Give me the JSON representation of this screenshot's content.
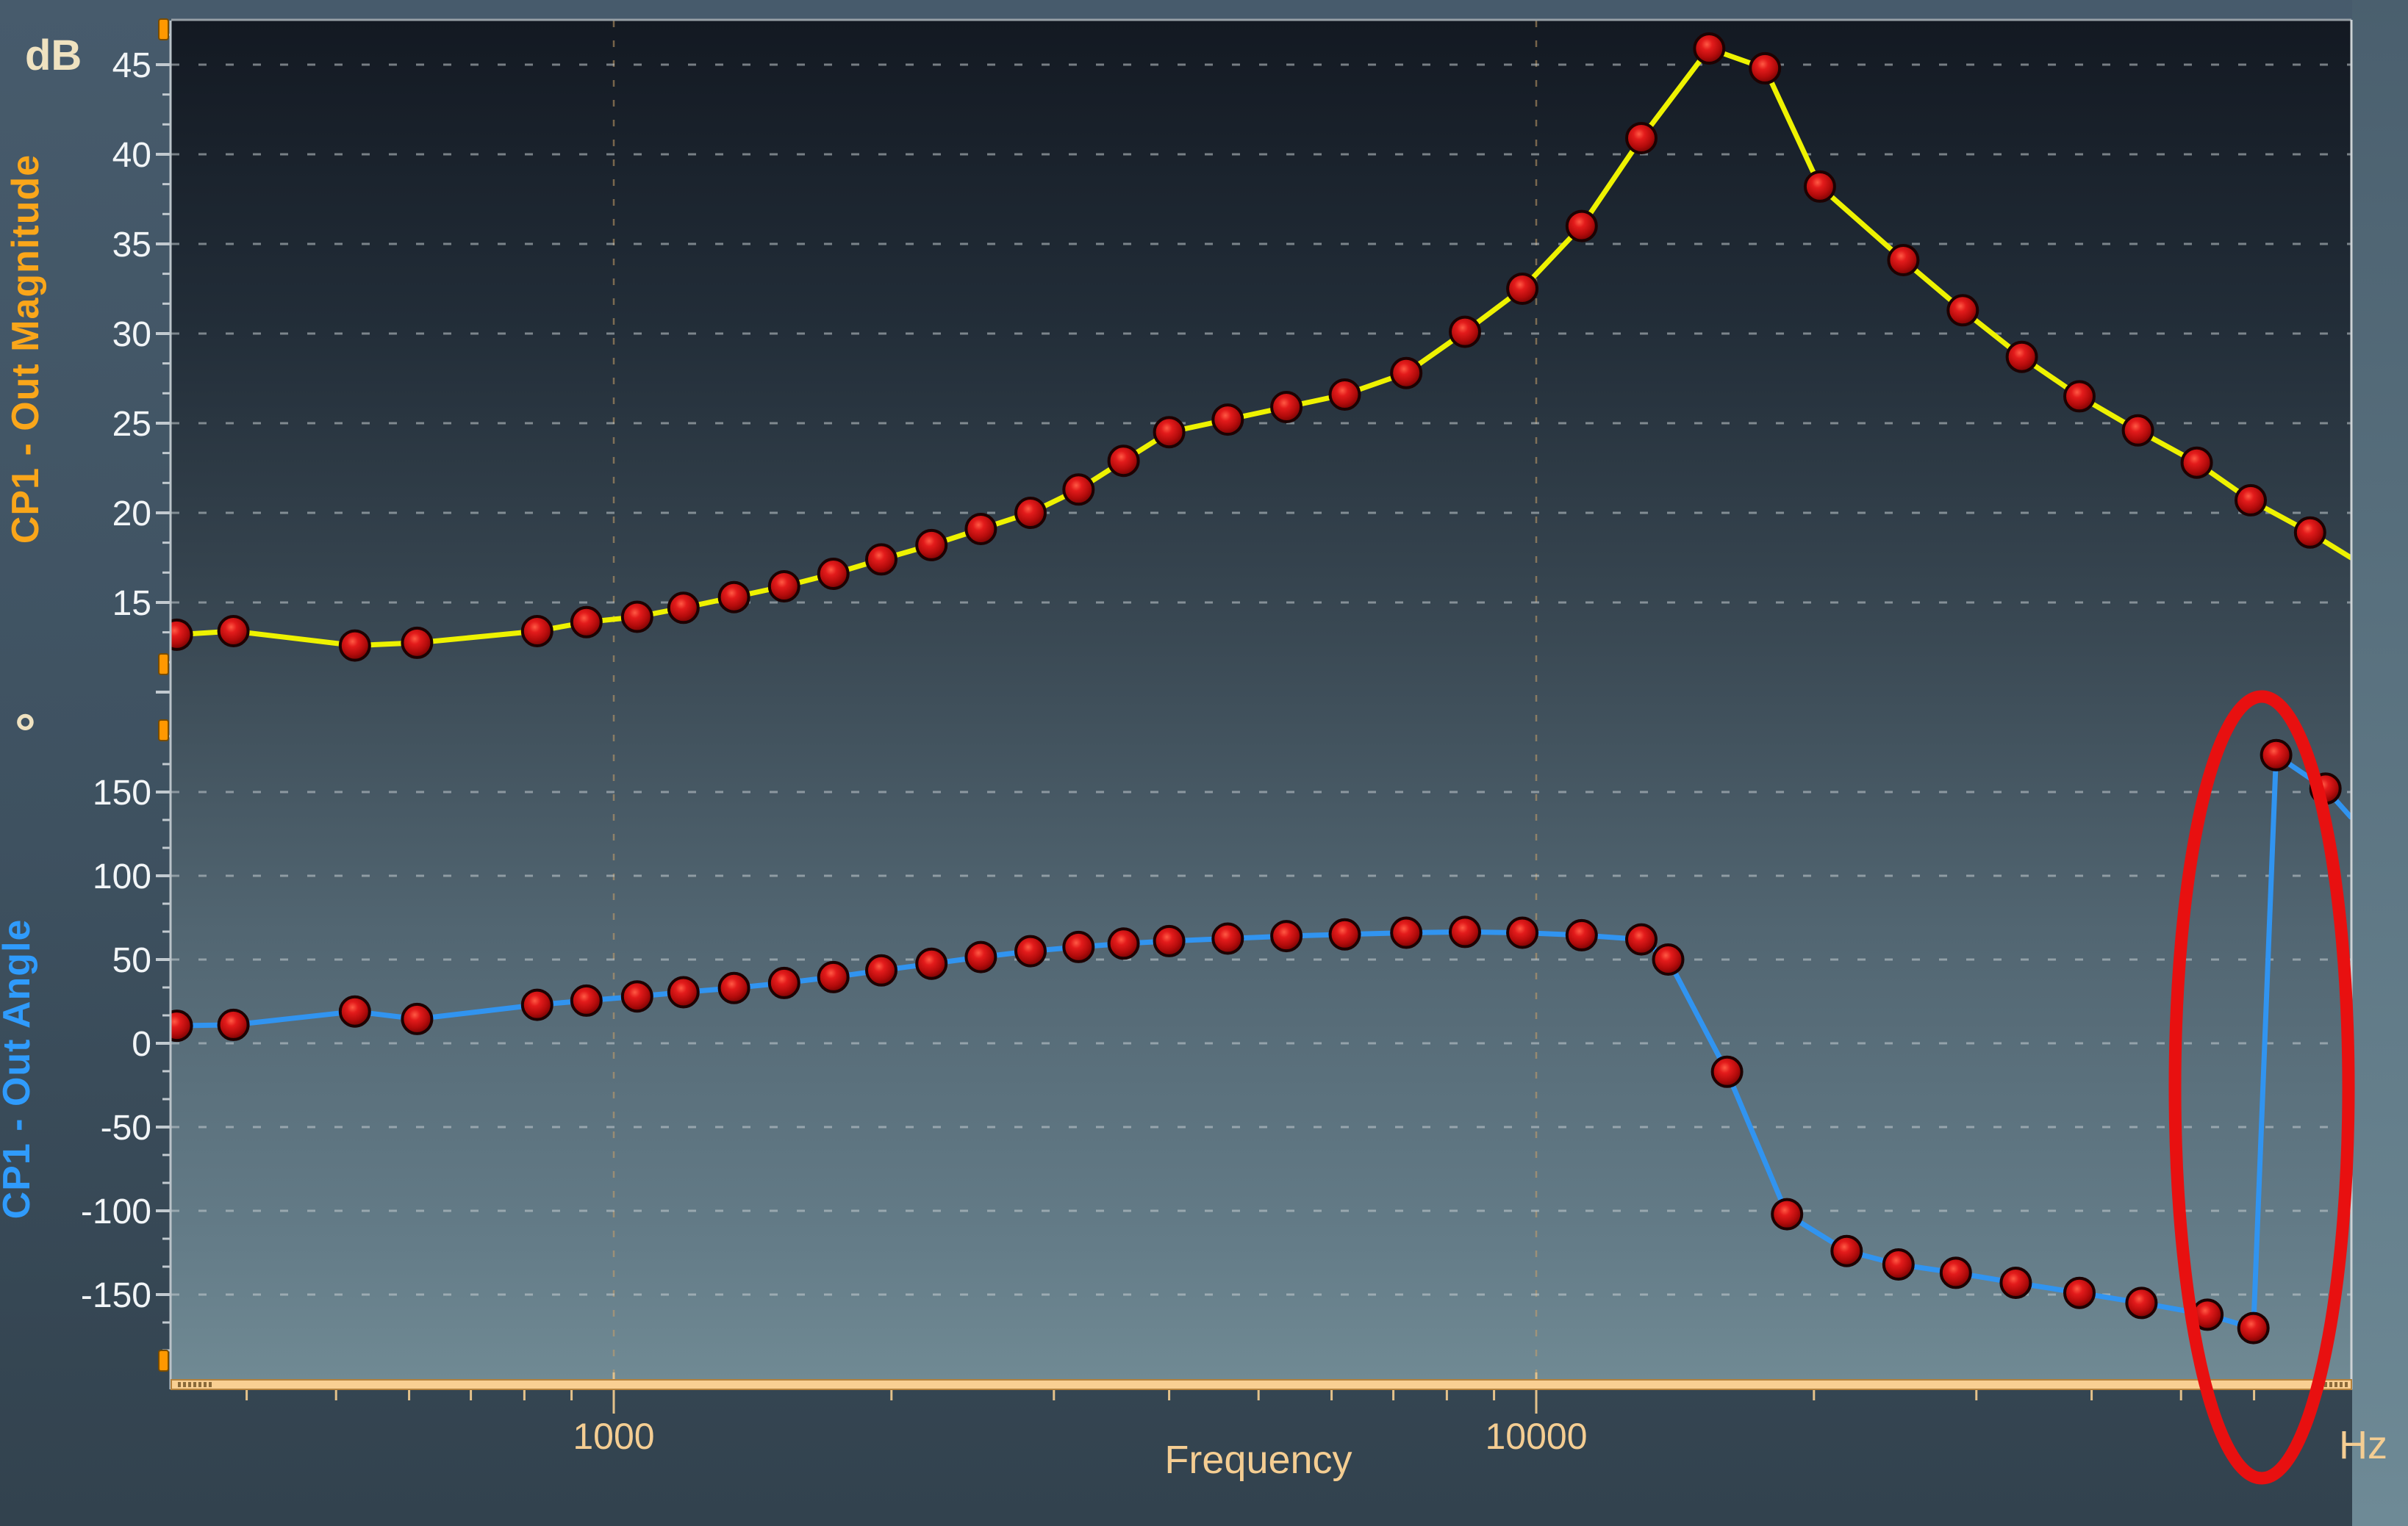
{
  "window": {
    "description": "Frequency response (Bode) plot from a measurement instrument UI",
    "units": {
      "magnitude": "dB",
      "angle": "°",
      "frequency": "Hz"
    }
  },
  "labels": {
    "db_unit": "dB",
    "degree_unit": "°",
    "magnitude_axis_title": "CP1 - Out Magnitude",
    "angle_axis_title": "CP1 - Out Angle",
    "frequency_axis_title": "Frequency",
    "hz_unit": "Hz",
    "x_major_tick_labels": [
      "1000",
      "10000"
    ]
  },
  "colors": {
    "magnitude_trace": "#eef200",
    "angle_trace": "#3194f0",
    "marker_fill": "#cc1111",
    "marker_edge": "#1c0202",
    "annotation_red": "#e81010",
    "tick_text": "#f2f5f7",
    "frequency_text": "#f4cd92",
    "magnitude_title_text": "#faa61a",
    "angle_title_text": "#2f9bfc",
    "unit_text": "#efe2c0",
    "scroll_bar": "#f9cf92",
    "axis_handle_orange": "#ff9800",
    "gridline": "#c7ced2",
    "decade_gridline": "#c8a06a"
  },
  "chart_data": {
    "type": "line",
    "x_axis": {
      "title": "Frequency",
      "unit": "Hz",
      "scale": "log",
      "range_hz": [
        333,
        76400
      ],
      "major_ticks_hz": [
        1000,
        10000
      ],
      "minor_ticks_hz": [
        400,
        500,
        600,
        700,
        800,
        900,
        2000,
        3000,
        4000,
        5000,
        6000,
        7000,
        8000,
        9000,
        20000,
        30000,
        40000,
        50000,
        60000,
        70000
      ],
      "grid": true
    },
    "magnitude_axis": {
      "title": "CP1 - Out Magnitude",
      "unit": "dB",
      "tick_values": [
        45,
        40,
        35,
        30,
        25,
        20,
        15
      ],
      "grid": true
    },
    "angle_axis": {
      "title": "CP1 - Out Angle",
      "unit": "°",
      "tick_values": [
        150,
        100,
        50,
        0,
        -50,
        -100,
        -150
      ],
      "grid": true
    },
    "series": [
      {
        "name": "CP1 - Out Magnitude",
        "unit": "dB",
        "marker": "dark-red-sphere",
        "frequencies_hz": [
          336,
          387,
          524,
          612,
          826,
          934,
          1060,
          1190,
          1350,
          1530,
          1730,
          1950,
          2210,
          2500,
          2830,
          3190,
          3570,
          4000,
          4630,
          5360,
          6200,
          7230,
          8370,
          9660,
          11200,
          13000,
          15400,
          17700,
          20300,
          25000,
          29000,
          33600,
          38800,
          44900,
          52000,
          59500,
          69000
        ],
        "values_db": [
          13.2,
          13.4,
          12.6,
          12.75,
          13.4,
          13.9,
          14.2,
          14.7,
          15.3,
          15.9,
          16.6,
          17.4,
          18.2,
          19.1,
          20.0,
          21.3,
          22.9,
          24.5,
          25.2,
          25.9,
          26.6,
          27.8,
          30.1,
          32.5,
          36.0,
          40.9,
          45.9,
          44.8,
          38.2,
          34.1,
          31.3,
          28.7,
          26.5,
          24.6,
          22.8,
          20.7,
          18.9
        ],
        "edge_point": {
          "hz": 76400,
          "value": 17.5
        },
        "peak": {
          "hz": 15400,
          "db": 45.9
        }
      },
      {
        "name": "CP1 - Out Angle",
        "unit": "°",
        "marker": "dark-red-sphere",
        "frequencies_hz": [
          336,
          387,
          524,
          612,
          826,
          934,
          1060,
          1190,
          1350,
          1530,
          1730,
          1950,
          2210,
          2500,
          2830,
          3190,
          3570,
          4000,
          4630,
          5360,
          6200,
          7230,
          8370,
          9660,
          11200,
          13000,
          13900,
          16100,
          18700,
          21700,
          24700,
          28500,
          33100,
          38800,
          45300,
          53400,
          59900,
          63400,
          71700
        ],
        "values_deg": [
          10.5,
          11,
          19,
          14.5,
          23,
          25.5,
          28,
          30.5,
          33,
          36,
          39.5,
          43.5,
          47.5,
          51.5,
          55,
          57.5,
          59.5,
          61,
          62.5,
          64,
          65,
          66,
          66.5,
          66,
          64.5,
          62,
          50,
          -17,
          -102,
          -124,
          -132,
          -137,
          -143,
          -149,
          -155,
          -162,
          -170,
          172,
          152
        ],
        "edge_point": {
          "hz": 76400,
          "value": 135
        },
        "phase_wrap": {
          "from_deg": -170,
          "to_deg": 172,
          "near_hz": 61000
        }
      }
    ],
    "annotation": {
      "shape": "ellipse",
      "color": "#e81010",
      "meaning": "highlights phase wrap discontinuity of angle trace",
      "center_hz": 61000,
      "center_deg": 0
    },
    "legend_position": "none",
    "title": ""
  }
}
